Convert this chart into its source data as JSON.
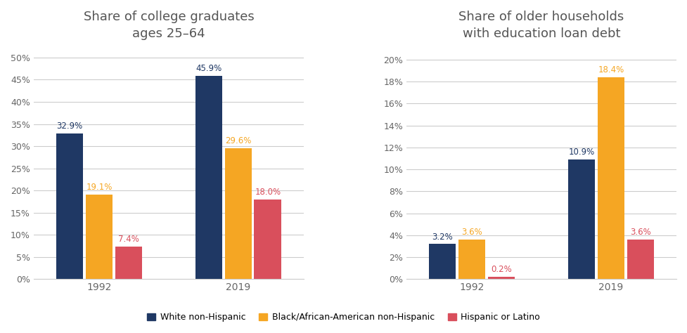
{
  "left_title": "Share of college graduates\nages 25–64",
  "right_title": "Share of older households\nwith education loan debt",
  "years": [
    "1992",
    "2019"
  ],
  "left_data": {
    "White non-Hispanic": [
      32.9,
      45.9
    ],
    "Black/African-American non-Hispanic": [
      19.1,
      29.6
    ],
    "Hispanic or Latino": [
      7.4,
      18.0
    ]
  },
  "right_data": {
    "White non-Hispanic": [
      3.2,
      10.9
    ],
    "Black/African-American non-Hispanic": [
      3.6,
      18.4
    ],
    "Hispanic or Latino": [
      0.2,
      3.6
    ]
  },
  "colors": {
    "White non-Hispanic": "#1f3864",
    "Black/African-American non-Hispanic": "#f5a623",
    "Hispanic or Latino": "#d94f5c"
  },
  "left_ylim": [
    0,
    52
  ],
  "left_yticks": [
    0,
    5,
    10,
    15,
    20,
    25,
    30,
    35,
    40,
    45,
    50
  ],
  "left_yticklabels": [
    "0%",
    "5%",
    "10%",
    "15%",
    "20%",
    "25%",
    "30%",
    "35%",
    "40%",
    "45%",
    "50%"
  ],
  "right_ylim": [
    0,
    21
  ],
  "right_yticks": [
    0,
    2,
    4,
    6,
    8,
    10,
    12,
    14,
    16,
    18,
    20
  ],
  "right_yticklabels": [
    "0%",
    "2%",
    "4%",
    "6%",
    "8%",
    "10%",
    "12%",
    "14%",
    "16%",
    "18%",
    "20%"
  ],
  "bar_width": 0.18,
  "legend_labels": [
    "White non-Hispanic",
    "Black/African-American non-Hispanic",
    "Hispanic or Latino"
  ],
  "background_color": "#ffffff",
  "label_fontsize": 8.5,
  "title_fontsize": 13,
  "tick_fontsize": 9,
  "year_fontsize": 10,
  "grid_color": "#cccccc",
  "title_color": "#555555",
  "tick_label_color": "#666666",
  "year_label_color": "#666666"
}
